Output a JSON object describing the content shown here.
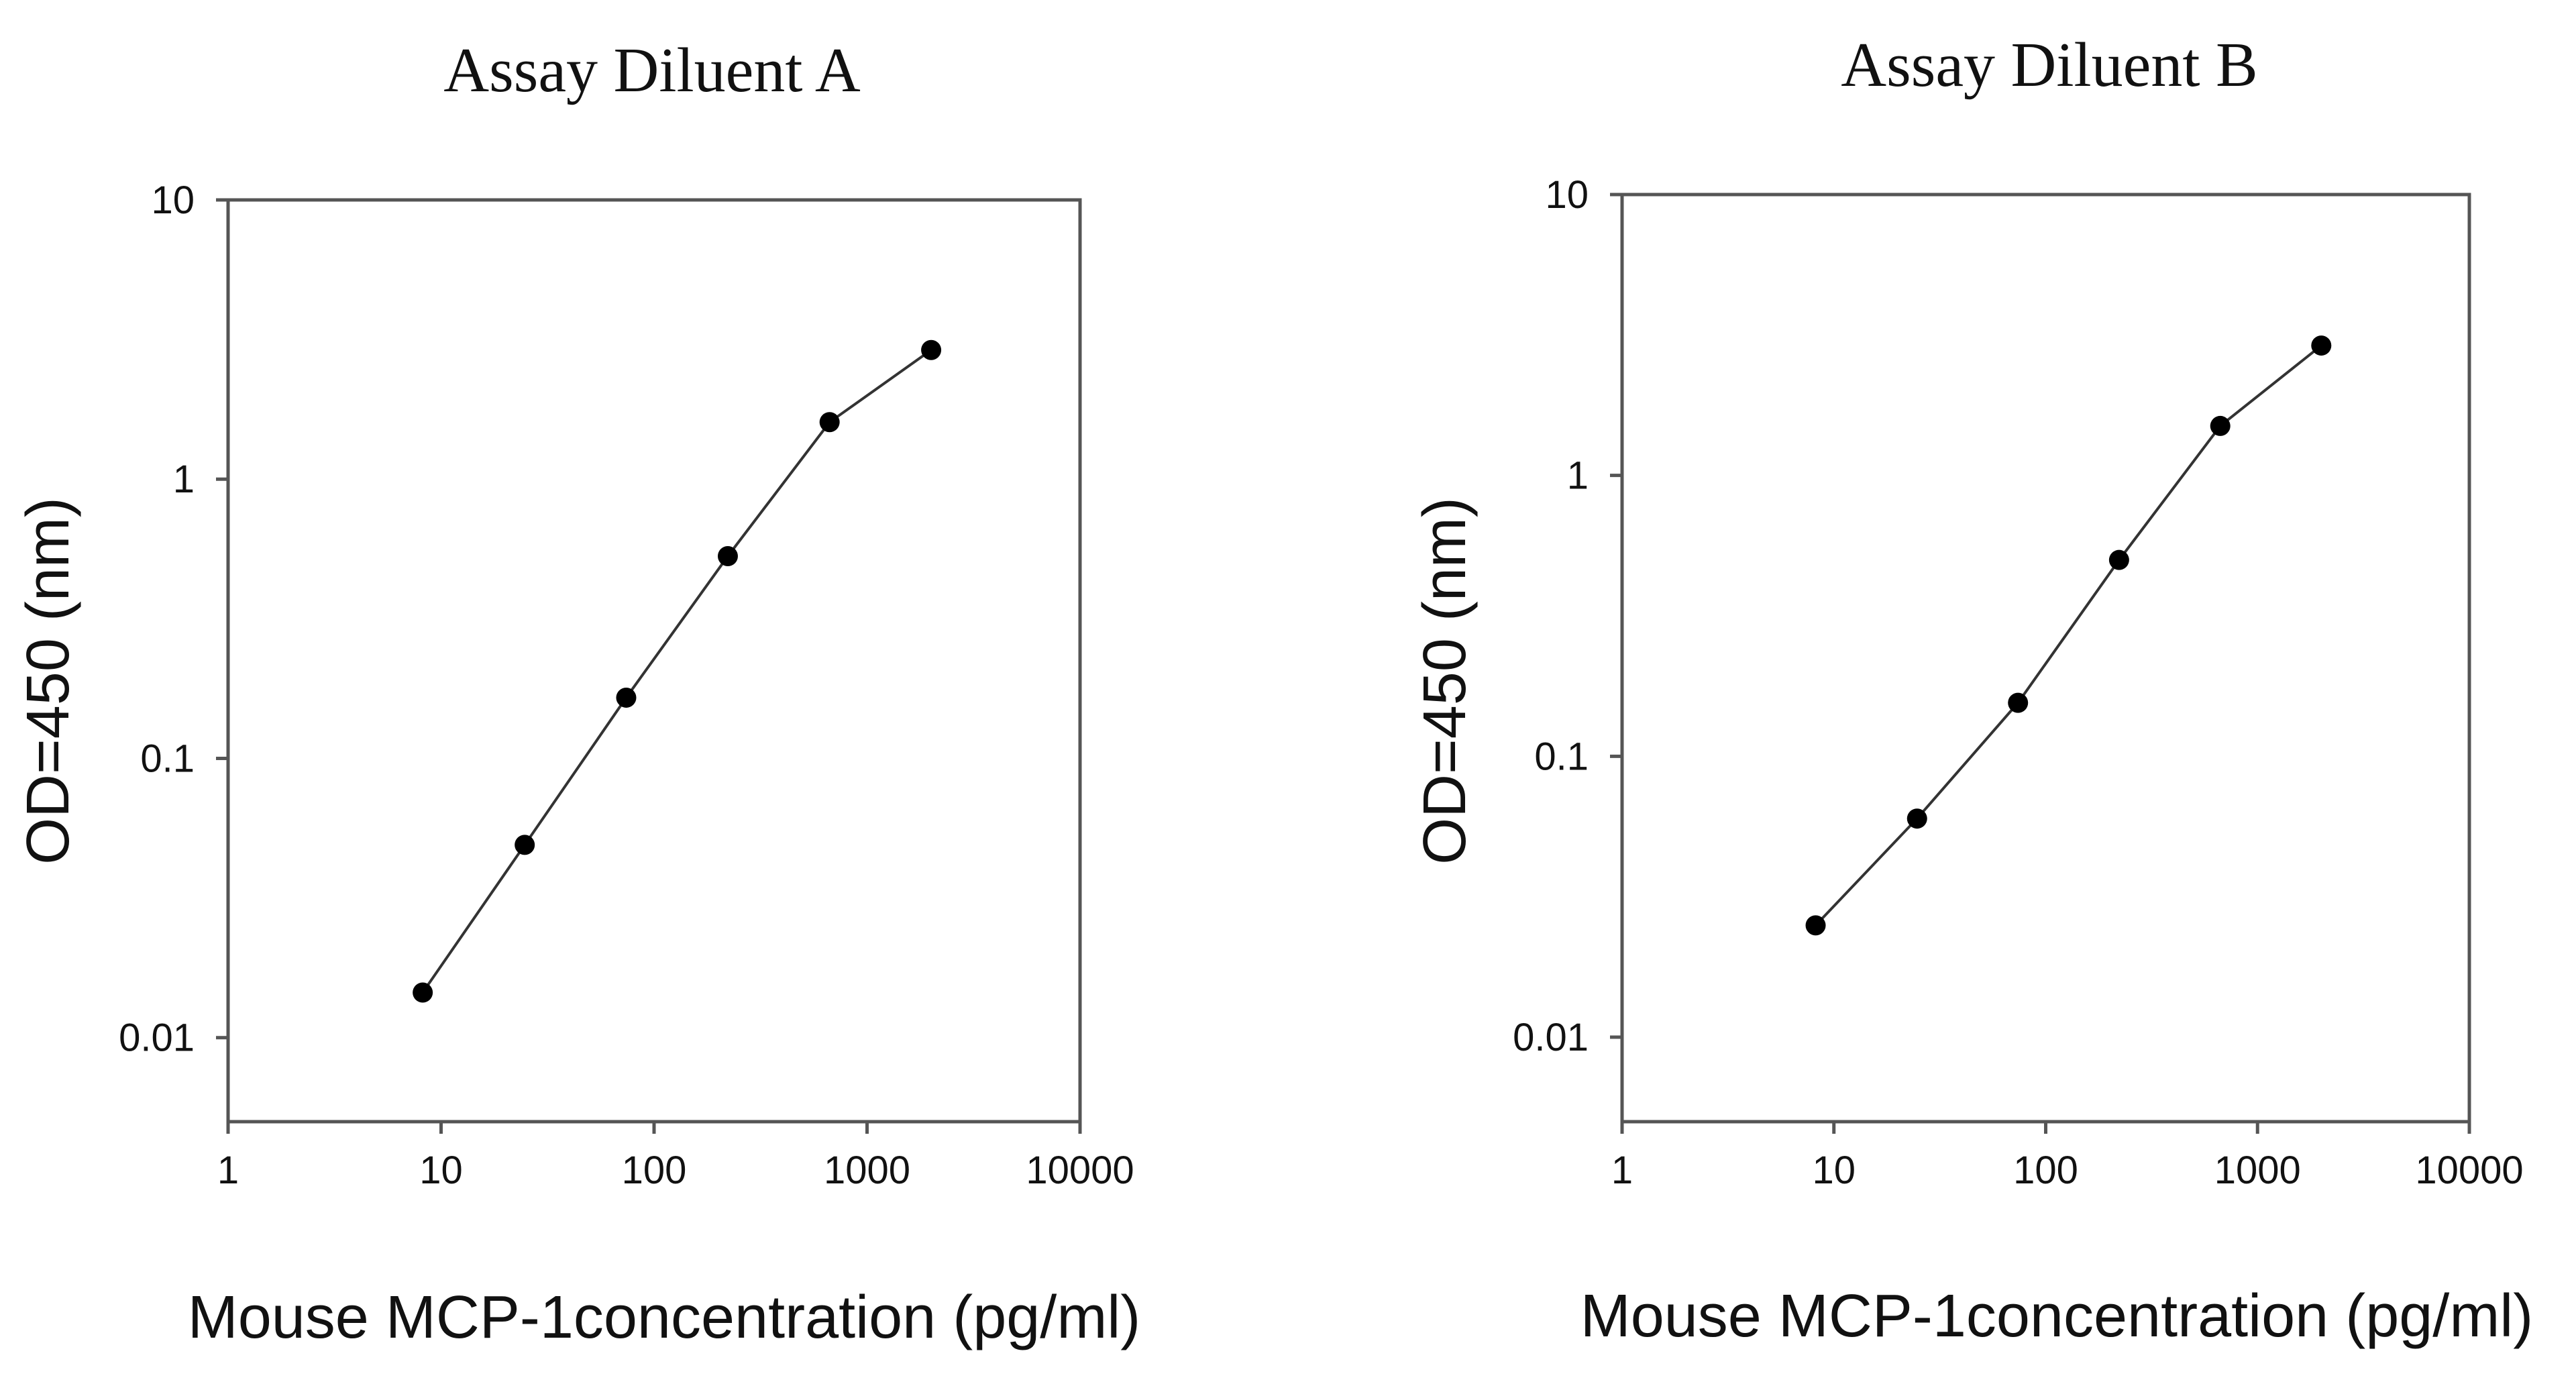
{
  "chart_data": [
    {
      "type": "line",
      "title": "Assay Diluent A",
      "xlabel": "Mouse MCP-1concentration (pg/ml)",
      "ylabel": "OD=450 (nm)",
      "xscale": "log",
      "yscale": "log",
      "xlim": [
        1,
        10000
      ],
      "ylim": [
        0.005,
        10
      ],
      "xticks": [
        1,
        10,
        100,
        1000,
        10000
      ],
      "xtick_labels": [
        "1",
        "10",
        "100",
        "1000",
        "10000"
      ],
      "yticks": [
        0.01,
        0.1,
        1,
        10
      ],
      "ytick_labels": [
        "0.01",
        "0.1",
        "1",
        "10"
      ],
      "series": [
        {
          "name": "Assay Diluent A",
          "x": [
            8.2,
            24.7,
            74,
            222,
            667,
            2000
          ],
          "y": [
            0.0145,
            0.049,
            0.165,
            0.53,
            1.6,
            2.9
          ]
        }
      ]
    },
    {
      "type": "line",
      "title": "Assay Diluent B",
      "xlabel": "Mouse MCP-1concentration (pg/ml)",
      "ylabel": "OD=450 (nm)",
      "xscale": "log",
      "yscale": "log",
      "xlim": [
        1,
        10000
      ],
      "ylim": [
        0.005,
        10
      ],
      "xticks": [
        1,
        10,
        100,
        1000,
        10000
      ],
      "xtick_labels": [
        "1",
        "10",
        "100",
        "1000",
        "10000"
      ],
      "yticks": [
        0.01,
        0.1,
        1,
        10
      ],
      "ytick_labels": [
        "0.01",
        "0.1",
        "1",
        "10"
      ],
      "series": [
        {
          "name": "Assay Diluent B",
          "x": [
            8.2,
            24.7,
            74,
            222,
            667,
            2000
          ],
          "y": [
            0.025,
            0.06,
            0.155,
            0.5,
            1.5,
            2.9
          ]
        }
      ]
    }
  ]
}
